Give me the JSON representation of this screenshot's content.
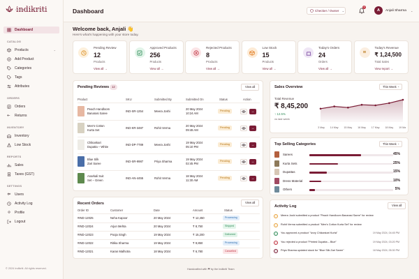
{
  "brand": {
    "name": "indikriti",
    "tagline": "CELEBRATE YOUR ROOTS"
  },
  "colors": {
    "accent": "#7a1c35",
    "pending": "#b5720e",
    "success": "#2e8b57"
  },
  "sidebar": {
    "items": [
      {
        "label": "Dashboard",
        "icon": "grid-icon"
      },
      {
        "section": "CATALOG"
      },
      {
        "label": "Products",
        "icon": "box-icon"
      },
      {
        "label": "Add Product",
        "icon": "plus-circle-icon"
      },
      {
        "label": "Categories",
        "icon": "tag-icon"
      },
      {
        "label": "Tags",
        "icon": "tags-icon"
      },
      {
        "label": "Attributes",
        "icon": "sliders-icon"
      },
      {
        "section": "ORDERS"
      },
      {
        "label": "Orders",
        "icon": "list-icon"
      },
      {
        "label": "Returns",
        "icon": "return-icon"
      },
      {
        "section": "INVENTORY"
      },
      {
        "label": "Inventory",
        "icon": "warehouse-icon"
      },
      {
        "label": "Low Stock",
        "icon": "alert-icon"
      },
      {
        "section": "REPORTS"
      },
      {
        "label": "Sales",
        "icon": "chart-icon"
      },
      {
        "label": "Taxes (GST)",
        "icon": "receipt-icon"
      },
      {
        "section": "SETTINGS"
      },
      {
        "label": "Users",
        "icon": "users-icon"
      },
      {
        "label": "Activity Log",
        "icon": "clock-icon"
      },
      {
        "label": "Profile",
        "icon": "user-icon"
      },
      {
        "label": "Logout",
        "icon": "logout-icon"
      }
    ],
    "copyright": "© 2024 Indikriti. All rights reserved."
  },
  "header": {
    "title": "Dashboard",
    "role": "Checker / Owner",
    "notifications": "6",
    "avatar_initial": "A",
    "user_name": "Anjali Sharma"
  },
  "welcome": {
    "title": "Welcome back, Anjali 👋",
    "subtitle": "Here's what's happening with your store today."
  },
  "stats": [
    {
      "label": "Pending Review",
      "value": "12",
      "sub": "Products",
      "link": "View all  →"
    },
    {
      "label": "Approved Products",
      "value": "256",
      "sub": "Products",
      "link": "View all  →"
    },
    {
      "label": "Rejected Products",
      "value": "8",
      "sub": "Products",
      "link": "View all  →"
    },
    {
      "label": "Low Stock",
      "value": "15",
      "sub": "Products",
      "link": "View all  →"
    },
    {
      "label": "Today's Orders",
      "value": "24",
      "sub": "Orders",
      "link": "View all  →"
    },
    {
      "label": "Today's Revenue",
      "value": "₹ 1,24,500",
      "sub": "Total Sales",
      "link": "View report  →"
    }
  ],
  "pending_reviews": {
    "title": "Pending Reviews",
    "count": "12",
    "view_all": "View all",
    "columns": [
      "Product",
      "SKU",
      "Submitted By",
      "Submitted On",
      "Status",
      "Action"
    ],
    "rows": [
      {
        "product": [
          "Peach Handloom",
          "Banarasi Saree"
        ],
        "sku": "IND-SR-1254",
        "by": "Meera Joshi",
        "on": [
          "20 May 2024",
          "10:24 AM"
        ],
        "status": "Pending"
      },
      {
        "product": [
          "Men's Cotton",
          "Kurta Set"
        ],
        "sku": "IND-KR-3487",
        "by": "Rohit Verma",
        "on": [
          "20 May 2024",
          "09:48 AM"
        ],
        "status": "Pending"
      },
      {
        "product": [
          "Chikankari",
          "Dupatta – White"
        ],
        "sku": "IND-DP-7789",
        "by": "Meera Joshi",
        "on": [
          "19 May 2024",
          "05:10 PM"
        ],
        "status": "Pending"
      },
      {
        "product": [
          "Blue Silk",
          "Zari Saree"
        ],
        "sku": "IND-SR-9987",
        "by": "Priya Sharma",
        "on": [
          "19 May 2024",
          "02:45 PM"
        ],
        "status": "Pending"
      },
      {
        "product": [
          "Anarkali Suit",
          "Set – Green"
        ],
        "sku": "IND-AN-4455",
        "by": "Rohit Verma",
        "on": [
          "18 May 2024",
          "11:30 AM"
        ],
        "status": "Pending"
      }
    ]
  },
  "recent_orders": {
    "title": "Recent Orders",
    "view_all": "View all",
    "columns": [
      "Order ID",
      "Customer",
      "Date",
      "Amount",
      "Status"
    ],
    "rows": [
      {
        "id": "#IND-12025",
        "customer": "Neha Kapoor",
        "date": "20 May 2024",
        "amount": "₹ 12,450",
        "status": "Processing",
        "color": "#2f6fb0",
        "bg": "#e3eefa"
      },
      {
        "id": "#IND-12024",
        "customer": "Arjun Mehta",
        "date": "20 May 2024",
        "amount": "₹ 8,750",
        "status": "Shipped",
        "color": "#2e8b57",
        "bg": "#e2f4e9"
      },
      {
        "id": "#IND-12023",
        "customer": "Pooja Singh",
        "date": "19 May 2024",
        "amount": "₹ 15,200",
        "status": "Delivered",
        "color": "#2e8b57",
        "bg": "#e2f4e9"
      },
      {
        "id": "#IND-12022",
        "customer": "Ritika Sharma",
        "date": "19 May 2024",
        "amount": "₹ 9,850",
        "status": "Processing",
        "color": "#2f6fb0",
        "bg": "#e3eefa"
      },
      {
        "id": "#IND-12021",
        "customer": "Karan Malhotra",
        "date": "18 May 2024",
        "amount": "₹ 6,780",
        "status": "Cancelled",
        "color": "#c0303f",
        "bg": "#fbe4e6"
      }
    ]
  },
  "sales_overview": {
    "title": "Sales Overview",
    "period": "This Week",
    "total_label": "Total Revenue",
    "total": "₹ 8,45,200",
    "change": "↑ 12.5%",
    "change_sub": "vs last week"
  },
  "chart_data": {
    "type": "area",
    "x": [
      "13 May",
      "14 May",
      "15 May",
      "16 May",
      "17 May",
      "18 May",
      "19 May"
    ],
    "values": [
      48,
      56,
      52,
      62,
      60,
      68,
      80
    ],
    "ylim": [
      0,
      100
    ],
    "grid": false
  },
  "top_categories": {
    "title": "Top Selling Categories",
    "period": "This Week",
    "items": [
      {
        "name": "Sarees",
        "pct": "45%",
        "value": 45,
        "color": "#b4603f"
      },
      {
        "name": "Kurta Sets",
        "pct": "25%",
        "value": 25,
        "color": "#8e7a5a"
      },
      {
        "name": "Dupattas",
        "pct": "15%",
        "value": 15,
        "color": "#d7c7b5"
      },
      {
        "name": "Dress Material",
        "pct": "10%",
        "value": 10,
        "color": "#a04a62"
      },
      {
        "name": "Others",
        "pct": "5%",
        "value": 5,
        "color": "#6e8a9a"
      }
    ]
  },
  "activity_log": {
    "title": "Activity Log",
    "view_all": "View all",
    "items": [
      {
        "text": "Meera Joshi submitted a product \"Peach Handloom Banarasi Saree\" for review",
        "time": "",
        "color": "#e9a23b"
      },
      {
        "text": "Rohit Verma submitted a product \"Men's Cotton Kurta Set\" for review",
        "time": "",
        "color": "#e9a23b"
      },
      {
        "text": "You approved a product \"Ivory Chikankari Kurta\"",
        "time": "19 May 2024, 04:45 PM",
        "color": "#2e8b57"
      },
      {
        "text": "You rejected a product \"Printed Dupatta – Blue\"",
        "time": "19 May 2024, 03:20 PM",
        "color": "#c0303f"
      },
      {
        "text": "Priya Sharma updated stock for \"Blue Silk Zari Saree\"",
        "time": "18 May 2024, 05:30 PM",
        "color": "#7a1c35"
      }
    ]
  },
  "footer": "Handcrafted with ❤ by the Indikriti Team"
}
